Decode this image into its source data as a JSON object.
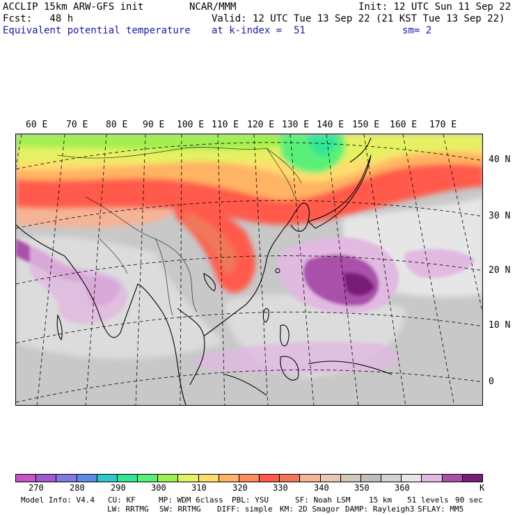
{
  "header": {
    "model_line": "ACCLIP 15km ARW-GFS init",
    "fcst_line": "Fcst:   48 h",
    "field_line": "Equivalent potential temperature",
    "center_line": "NCAR/MMM",
    "init_line": "Init: 12 UTC Sun 11 Sep 22",
    "valid_line": "Valid: 12 UTC Tue 13 Sep 22 (21 KST Tue 13 Sep 22)",
    "level_line": "at k-index =  51",
    "smooth_line": "sm= 2"
  },
  "map": {
    "longitude_labels": [
      "60 E",
      "70 E",
      "80 E",
      "90 E",
      "100 E",
      "110 E",
      "120 E",
      "130 E",
      "140 E",
      "150 E",
      "160 E",
      "170 E"
    ],
    "latitude_labels": [
      "40 N",
      "30 N",
      "20 N",
      "10 N",
      "0"
    ]
  },
  "colorbar": {
    "unit": "K",
    "ticks": [
      "270",
      "280",
      "290",
      "300",
      "310",
      "320",
      "330",
      "340",
      "350",
      "360"
    ],
    "colors": [
      "#c855c8",
      "#a05ad2",
      "#8278e6",
      "#5a8ce6",
      "#32c8c8",
      "#32e696",
      "#5af078",
      "#a0f050",
      "#e6f064",
      "#ffdc6e",
      "#ffb464",
      "#ff8c5a",
      "#ff5a4b",
      "#f0785a",
      "#f5b496",
      "#e6c8b4",
      "#d2c8be",
      "#bebebe",
      "#d2d2d2",
      "#e6e6e6",
      "#e1b9e1",
      "#aa50aa",
      "#781e78"
    ]
  },
  "footer": {
    "line1": [
      "Model Info: V4.4",
      "CU: KF",
      "MP: WDM 6class",
      "PBL: YSU",
      "SF: Noah LSM",
      "15 km",
      "51 levels",
      "90 sec"
    ],
    "line2": [
      "LW: RRTMG",
      "SW: RRTMG",
      "DIFF: simple",
      "KM: 2D Smagor",
      "DAMP: Rayleigh3",
      "SFLAY: MM5"
    ]
  }
}
